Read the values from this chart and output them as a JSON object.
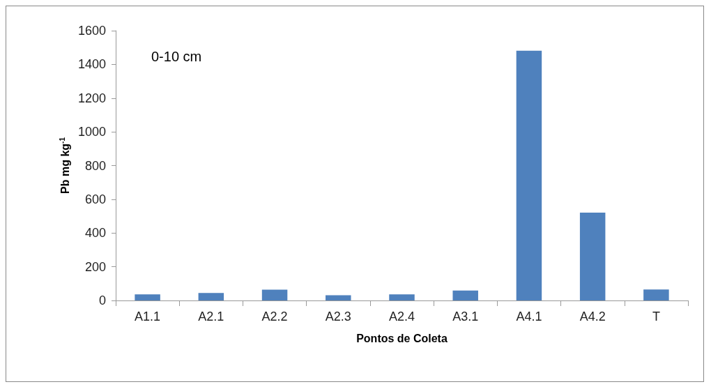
{
  "chart_data": {
    "type": "bar",
    "xlabel": "Pontos de Coleta",
    "ylabel": "Pb mg kg$^{-1}$",
    "categories": [
      "A1.1",
      "A2.1",
      "A2.2",
      "A2.3",
      "A2.4",
      "A3.1",
      "A4.1",
      "A4.2",
      "T"
    ],
    "values": [
      36,
      44,
      64,
      31,
      36,
      59,
      1481,
      521,
      65
    ],
    "color": "#4f81bd",
    "ylim": [
      0,
      1600
    ],
    "yticks": [
      0,
      200,
      400,
      600,
      800,
      1000,
      1200,
      1400,
      1600
    ],
    "grid": false,
    "annotations": [
      "0-10 cm"
    ]
  }
}
